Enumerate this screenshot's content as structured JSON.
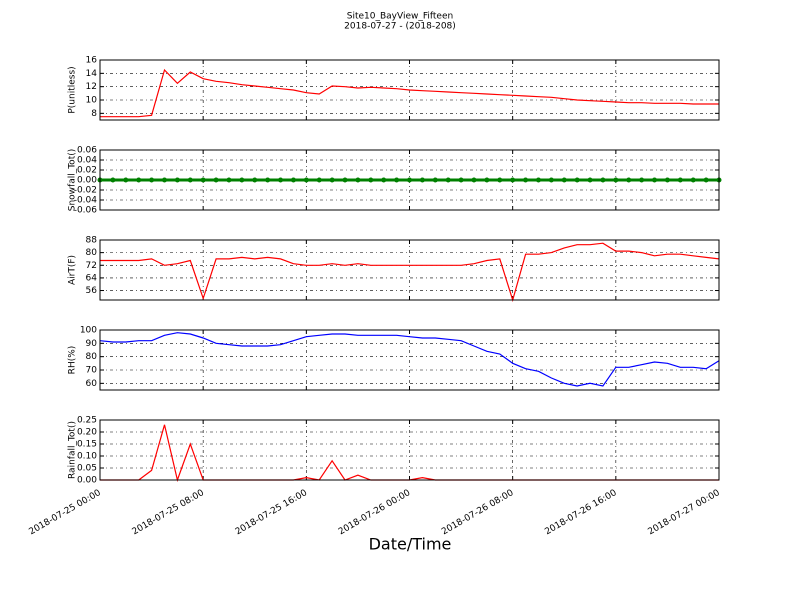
{
  "title": "Site10_BayView_Fifteen",
  "subtitle": "2018-07-27 - (2018-208)",
  "xlabel": "Date/Time",
  "chart_data": [
    {
      "type": "line",
      "ylabel": "P(unitless)",
      "ylim": [
        7,
        16
      ],
      "yticks": [
        8,
        10,
        12,
        14,
        16
      ],
      "grid": true,
      "xlim": [
        "2018-07-25 00:00",
        "2018-07-27 00:00"
      ],
      "xticks": [
        "2018-07-25 00:00",
        "2018-07-25 08:00",
        "2018-07-25 16:00",
        "2018-07-26 00:00",
        "2018-07-26 08:00",
        "2018-07-26 16:00",
        "2018-07-27 00:00"
      ],
      "x": [
        "2018-07-25 00:00",
        "2018-07-25 01:00",
        "2018-07-25 02:00",
        "2018-07-25 03:00",
        "2018-07-25 04:00",
        "2018-07-25 05:00",
        "2018-07-25 06:00",
        "2018-07-25 07:00",
        "2018-07-25 08:00",
        "2018-07-25 09:00",
        "2018-07-25 10:00",
        "2018-07-25 11:00",
        "2018-07-25 12:00",
        "2018-07-25 13:00",
        "2018-07-25 14:00",
        "2018-07-25 15:00",
        "2018-07-25 16:00",
        "2018-07-25 17:00",
        "2018-07-25 18:00",
        "2018-07-25 19:00",
        "2018-07-25 20:00",
        "2018-07-25 21:00",
        "2018-07-25 22:00",
        "2018-07-25 23:00",
        "2018-07-26 00:00",
        "2018-07-26 01:00",
        "2018-07-26 02:00",
        "2018-07-26 03:00",
        "2018-07-26 04:00",
        "2018-07-26 05:00",
        "2018-07-26 06:00",
        "2018-07-26 07:00",
        "2018-07-26 08:00",
        "2018-07-26 09:00",
        "2018-07-26 10:00",
        "2018-07-26 11:00",
        "2018-07-26 12:00",
        "2018-07-26 13:00",
        "2018-07-26 14:00",
        "2018-07-26 15:00",
        "2018-07-26 16:00",
        "2018-07-26 17:00",
        "2018-07-26 18:00",
        "2018-07-26 19:00",
        "2018-07-26 20:00",
        "2018-07-26 21:00",
        "2018-07-26 22:00",
        "2018-07-26 23:00",
        "2018-07-27 00:00"
      ],
      "series": [
        {
          "color": "#ff0000",
          "values": [
            7.5,
            7.5,
            7.5,
            7.5,
            7.7,
            14.5,
            12.5,
            14.2,
            13.2,
            12.8,
            12.6,
            12.3,
            12.1,
            11.9,
            11.7,
            11.5,
            11.1,
            10.9,
            12.1,
            12.0,
            11.8,
            11.9,
            11.8,
            11.7,
            11.5,
            11.4,
            11.3,
            11.2,
            11.1,
            11.0,
            10.9,
            10.8,
            10.7,
            10.6,
            10.5,
            10.4,
            10.2,
            10.0,
            9.9,
            9.8,
            9.7,
            9.6,
            9.6,
            9.5,
            9.5,
            9.5,
            9.4,
            9.4,
            9.4
          ]
        }
      ]
    },
    {
      "type": "line",
      "marker": true,
      "ylabel": "Snowfall_Tot()",
      "ylim": [
        -0.06,
        0.06
      ],
      "yticks": [
        -0.06,
        -0.04,
        -0.02,
        {
          "value": 0,
          "label": "0.00"
        },
        0.02,
        0.04,
        0.06
      ],
      "grid": true,
      "xlim": [
        "2018-07-25 00:00",
        "2018-07-27 00:00"
      ],
      "xticks": [
        "2018-07-25 00:00",
        "2018-07-25 08:00",
        "2018-07-25 16:00",
        "2018-07-26 00:00",
        "2018-07-26 08:00",
        "2018-07-26 16:00",
        "2018-07-27 00:00"
      ],
      "x": [
        "2018-07-25 00:00",
        "2018-07-25 01:00",
        "2018-07-25 02:00",
        "2018-07-25 03:00",
        "2018-07-25 04:00",
        "2018-07-25 05:00",
        "2018-07-25 06:00",
        "2018-07-25 07:00",
        "2018-07-25 08:00",
        "2018-07-25 09:00",
        "2018-07-25 10:00",
        "2018-07-25 11:00",
        "2018-07-25 12:00",
        "2018-07-25 13:00",
        "2018-07-25 14:00",
        "2018-07-25 15:00",
        "2018-07-25 16:00",
        "2018-07-25 17:00",
        "2018-07-25 18:00",
        "2018-07-25 19:00",
        "2018-07-25 20:00",
        "2018-07-25 21:00",
        "2018-07-25 22:00",
        "2018-07-25 23:00",
        "2018-07-26 00:00",
        "2018-07-26 01:00",
        "2018-07-26 02:00",
        "2018-07-26 03:00",
        "2018-07-26 04:00",
        "2018-07-26 05:00",
        "2018-07-26 06:00",
        "2018-07-26 07:00",
        "2018-07-26 08:00",
        "2018-07-26 09:00",
        "2018-07-26 10:00",
        "2018-07-26 11:00",
        "2018-07-26 12:00",
        "2018-07-26 13:00",
        "2018-07-26 14:00",
        "2018-07-26 15:00",
        "2018-07-26 16:00",
        "2018-07-26 17:00",
        "2018-07-26 18:00",
        "2018-07-26 19:00",
        "2018-07-26 20:00",
        "2018-07-26 21:00",
        "2018-07-26 22:00",
        "2018-07-26 23:00",
        "2018-07-27 00:00"
      ],
      "series": [
        {
          "color": "#008000",
          "values": [
            0,
            0,
            0,
            0,
            0,
            0,
            0,
            0,
            0,
            0,
            0,
            0,
            0,
            0,
            0,
            0,
            0,
            0,
            0,
            0,
            0,
            0,
            0,
            0,
            0,
            0,
            0,
            0,
            0,
            0,
            0,
            0,
            0,
            0,
            0,
            0,
            0,
            0,
            0,
            0,
            0,
            0,
            0,
            0,
            0,
            0,
            0,
            0,
            0
          ]
        }
      ]
    },
    {
      "type": "line",
      "ylabel": "AirT(F)",
      "ylim": [
        50,
        88
      ],
      "yticks": [
        56,
        64,
        72,
        80,
        88
      ],
      "grid": true,
      "xlim": [
        "2018-07-25 00:00",
        "2018-07-27 00:00"
      ],
      "xticks": [
        "2018-07-25 00:00",
        "2018-07-25 08:00",
        "2018-07-25 16:00",
        "2018-07-26 00:00",
        "2018-07-26 08:00",
        "2018-07-26 16:00",
        "2018-07-27 00:00"
      ],
      "x": [
        "2018-07-25 00:00",
        "2018-07-25 01:00",
        "2018-07-25 02:00",
        "2018-07-25 03:00",
        "2018-07-25 04:00",
        "2018-07-25 05:00",
        "2018-07-25 06:00",
        "2018-07-25 07:00",
        "2018-07-25 08:00",
        "2018-07-25 09:00",
        "2018-07-25 10:00",
        "2018-07-25 11:00",
        "2018-07-25 12:00",
        "2018-07-25 13:00",
        "2018-07-25 14:00",
        "2018-07-25 15:00",
        "2018-07-25 16:00",
        "2018-07-25 17:00",
        "2018-07-25 18:00",
        "2018-07-25 19:00",
        "2018-07-25 20:00",
        "2018-07-25 21:00",
        "2018-07-25 22:00",
        "2018-07-25 23:00",
        "2018-07-26 00:00",
        "2018-07-26 01:00",
        "2018-07-26 02:00",
        "2018-07-26 03:00",
        "2018-07-26 04:00",
        "2018-07-26 05:00",
        "2018-07-26 06:00",
        "2018-07-26 07:00",
        "2018-07-26 08:00",
        "2018-07-26 09:00",
        "2018-07-26 10:00",
        "2018-07-26 11:00",
        "2018-07-26 12:00",
        "2018-07-26 13:00",
        "2018-07-26 14:00",
        "2018-07-26 15:00",
        "2018-07-26 16:00",
        "2018-07-26 17:00",
        "2018-07-26 18:00",
        "2018-07-26 19:00",
        "2018-07-26 20:00",
        "2018-07-26 21:00",
        "2018-07-26 22:00",
        "2018-07-26 23:00",
        "2018-07-27 00:00"
      ],
      "series": [
        {
          "color": "#ff0000",
          "values": [
            75,
            75,
            75,
            75,
            76,
            72,
            73,
            75,
            51,
            76,
            76,
            77,
            76,
            77,
            76,
            73,
            72,
            72,
            73,
            72,
            73,
            72,
            72,
            72,
            72,
            72,
            72,
            72,
            72,
            73,
            75,
            76,
            50,
            79,
            79,
            80,
            83,
            85,
            85,
            86,
            81,
            81,
            80,
            78,
            79,
            79,
            78,
            77,
            76
          ]
        }
      ]
    },
    {
      "type": "line",
      "ylabel": "RH(%)",
      "ylim": [
        55,
        100
      ],
      "yticks": [
        60,
        70,
        80,
        90,
        100
      ],
      "grid": true,
      "xlim": [
        "2018-07-25 00:00",
        "2018-07-27 00:00"
      ],
      "xticks": [
        "2018-07-25 00:00",
        "2018-07-25 08:00",
        "2018-07-25 16:00",
        "2018-07-26 00:00",
        "2018-07-26 08:00",
        "2018-07-26 16:00",
        "2018-07-27 00:00"
      ],
      "x": [
        "2018-07-25 00:00",
        "2018-07-25 01:00",
        "2018-07-25 02:00",
        "2018-07-25 03:00",
        "2018-07-25 04:00",
        "2018-07-25 05:00",
        "2018-07-25 06:00",
        "2018-07-25 07:00",
        "2018-07-25 08:00",
        "2018-07-25 09:00",
        "2018-07-25 10:00",
        "2018-07-25 11:00",
        "2018-07-25 12:00",
        "2018-07-25 13:00",
        "2018-07-25 14:00",
        "2018-07-25 15:00",
        "2018-07-25 16:00",
        "2018-07-25 17:00",
        "2018-07-25 18:00",
        "2018-07-25 19:00",
        "2018-07-25 20:00",
        "2018-07-25 21:00",
        "2018-07-25 22:00",
        "2018-07-25 23:00",
        "2018-07-26 00:00",
        "2018-07-26 01:00",
        "2018-07-26 02:00",
        "2018-07-26 03:00",
        "2018-07-26 04:00",
        "2018-07-26 05:00",
        "2018-07-26 06:00",
        "2018-07-26 07:00",
        "2018-07-26 08:00",
        "2018-07-26 09:00",
        "2018-07-26 10:00",
        "2018-07-26 11:00",
        "2018-07-26 12:00",
        "2018-07-26 13:00",
        "2018-07-26 14:00",
        "2018-07-26 15:00",
        "2018-07-26 16:00",
        "2018-07-26 17:00",
        "2018-07-26 18:00",
        "2018-07-26 19:00",
        "2018-07-26 20:00",
        "2018-07-26 21:00",
        "2018-07-26 22:00",
        "2018-07-26 23:00",
        "2018-07-27 00:00"
      ],
      "series": [
        {
          "color": "#0000ff",
          "values": [
            92,
            91,
            91,
            92,
            92,
            96,
            98,
            97,
            94,
            90,
            89,
            88,
            88,
            88,
            89,
            92,
            95,
            96,
            97,
            97,
            96,
            96,
            96,
            96,
            95,
            94,
            94,
            93,
            92,
            88,
            84,
            82,
            75,
            71,
            69,
            64,
            60,
            58,
            60,
            58,
            72,
            72,
            74,
            76,
            75,
            72,
            72,
            71,
            77
          ]
        }
      ]
    },
    {
      "type": "line",
      "ylabel": "Rainfall_Tot()",
      "ylim": [
        0,
        0.25
      ],
      "yticks": [
        {
          "value": 0,
          "label": "0.00"
        },
        0.05,
        {
          "value": 0.1,
          "label": "0.10"
        },
        0.15,
        {
          "value": 0.2,
          "label": "0.20"
        },
        0.25
      ],
      "grid": true,
      "xticklabels": true,
      "xlim": [
        "2018-07-25 00:00",
        "2018-07-27 00:00"
      ],
      "xticks": [
        "2018-07-25 00:00",
        "2018-07-25 08:00",
        "2018-07-25 16:00",
        "2018-07-26 00:00",
        "2018-07-26 08:00",
        "2018-07-26 16:00",
        "2018-07-27 00:00"
      ],
      "x": [
        "2018-07-25 00:00",
        "2018-07-25 01:00",
        "2018-07-25 02:00",
        "2018-07-25 03:00",
        "2018-07-25 04:00",
        "2018-07-25 05:00",
        "2018-07-25 06:00",
        "2018-07-25 07:00",
        "2018-07-25 08:00",
        "2018-07-25 09:00",
        "2018-07-25 10:00",
        "2018-07-25 11:00",
        "2018-07-25 12:00",
        "2018-07-25 13:00",
        "2018-07-25 14:00",
        "2018-07-25 15:00",
        "2018-07-25 16:00",
        "2018-07-25 17:00",
        "2018-07-25 18:00",
        "2018-07-25 19:00",
        "2018-07-25 20:00",
        "2018-07-25 21:00",
        "2018-07-25 22:00",
        "2018-07-25 23:00",
        "2018-07-26 00:00",
        "2018-07-26 01:00",
        "2018-07-26 02:00",
        "2018-07-26 03:00",
        "2018-07-26 04:00",
        "2018-07-26 05:00",
        "2018-07-26 06:00",
        "2018-07-26 07:00",
        "2018-07-26 08:00",
        "2018-07-26 09:00",
        "2018-07-26 10:00",
        "2018-07-26 11:00",
        "2018-07-26 12:00",
        "2018-07-26 13:00",
        "2018-07-26 14:00",
        "2018-07-26 15:00",
        "2018-07-26 16:00",
        "2018-07-26 17:00",
        "2018-07-26 18:00",
        "2018-07-26 19:00",
        "2018-07-26 20:00",
        "2018-07-26 21:00",
        "2018-07-26 22:00",
        "2018-07-26 23:00",
        "2018-07-27 00:00"
      ],
      "series": [
        {
          "color": "#ff0000",
          "values": [
            0,
            0,
            0,
            0,
            0.04,
            0.23,
            0,
            0.15,
            0,
            0,
            0,
            0,
            0,
            0,
            0,
            0,
            0.01,
            0,
            0.08,
            0,
            0.02,
            0,
            0,
            0,
            0,
            0.01,
            0,
            0,
            0,
            0,
            0,
            0,
            0,
            0,
            0,
            0,
            0,
            0,
            0,
            0,
            0,
            0,
            0,
            0,
            0,
            0,
            0,
            0,
            0
          ]
        }
      ]
    }
  ]
}
